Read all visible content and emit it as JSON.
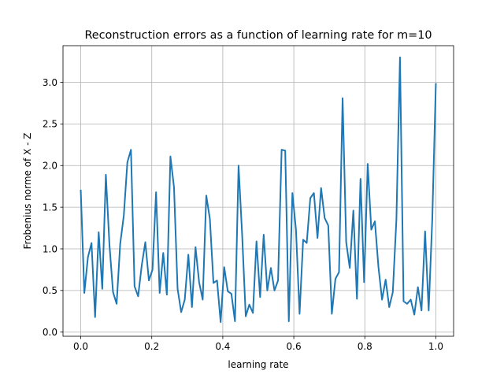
{
  "chart_data": {
    "type": "line",
    "title": "Reconstruction errors as a function of learning rate for m=10",
    "xlabel": "learning rate",
    "ylabel": "Frobenius norme of X - Z",
    "xlim": [
      -0.05,
      1.05
    ],
    "ylim": [
      -0.05,
      3.44
    ],
    "xticks": [
      0.0,
      0.2,
      0.4,
      0.6,
      0.8,
      1.0
    ],
    "xtick_labels": [
      "0.0",
      "0.2",
      "0.4",
      "0.6",
      "0.8",
      "1.0"
    ],
    "yticks": [
      0.0,
      0.5,
      1.0,
      1.5,
      2.0,
      2.5,
      3.0
    ],
    "ytick_labels": [
      "0.0",
      "0.5",
      "1.0",
      "1.5",
      "2.0",
      "2.5",
      "3.0"
    ],
    "grid": true,
    "line_color": "#1f77b4",
    "series": [
      {
        "x": [
          0.0,
          0.0101,
          0.0202,
          0.0303,
          0.0404,
          0.0505,
          0.0606,
          0.0707,
          0.0808,
          0.0909,
          0.101,
          0.1111,
          0.1212,
          0.1313,
          0.1414,
          0.1515,
          0.1616,
          0.1717,
          0.1818,
          0.1919,
          0.202,
          0.2121,
          0.2222,
          0.2323,
          0.2424,
          0.2525,
          0.2626,
          0.2727,
          0.2828,
          0.2929,
          0.303,
          0.3131,
          0.3232,
          0.3333,
          0.3434,
          0.3535,
          0.3636,
          0.3737,
          0.3838,
          0.3939,
          0.404,
          0.4141,
          0.4242,
          0.4343,
          0.4444,
          0.4545,
          0.4646,
          0.4747,
          0.4848,
          0.4949,
          0.5051,
          0.5152,
          0.5253,
          0.5354,
          0.5455,
          0.5556,
          0.5657,
          0.5758,
          0.5859,
          0.596,
          0.6061,
          0.6162,
          0.6263,
          0.6364,
          0.6465,
          0.6566,
          0.6667,
          0.6768,
          0.6869,
          0.697,
          0.7071,
          0.7172,
          0.7273,
          0.7374,
          0.7475,
          0.7576,
          0.7677,
          0.7778,
          0.7879,
          0.798,
          0.8081,
          0.8182,
          0.8283,
          0.8384,
          0.8485,
          0.8586,
          0.8687,
          0.8788,
          0.8889,
          0.899,
          0.9091,
          0.9192,
          0.9293,
          0.9394,
          0.9495,
          0.9596,
          0.9697,
          0.9798,
          0.9899,
          1.0
        ],
        "y": [
          1.7,
          0.47,
          0.9,
          1.07,
          0.18,
          1.2,
          0.52,
          1.89,
          1.05,
          0.48,
          0.34,
          1.06,
          1.4,
          2.04,
          2.19,
          0.55,
          0.43,
          0.8,
          1.08,
          0.62,
          0.75,
          1.68,
          0.47,
          0.95,
          0.45,
          2.11,
          1.74,
          0.52,
          0.24,
          0.39,
          0.93,
          0.3,
          1.02,
          0.6,
          0.39,
          1.64,
          1.36,
          0.59,
          0.62,
          0.12,
          0.78,
          0.49,
          0.46,
          0.13,
          2.0,
          1.17,
          0.19,
          0.33,
          0.23,
          1.09,
          0.42,
          1.17,
          0.5,
          0.77,
          0.5,
          0.62,
          2.19,
          2.18,
          0.13,
          1.67,
          1.23,
          0.22,
          1.11,
          1.07,
          1.61,
          1.67,
          1.13,
          1.73,
          1.37,
          1.28,
          0.22,
          0.64,
          0.72,
          2.81,
          1.08,
          0.77,
          1.46,
          0.4,
          1.84,
          0.6,
          2.02,
          1.23,
          1.33,
          0.78,
          0.39,
          0.63,
          0.3,
          0.48,
          1.35,
          3.3,
          0.37,
          0.34,
          0.39,
          0.21,
          0.54,
          0.26,
          1.21,
          0.26,
          1.35,
          2.98
        ]
      }
    ]
  }
}
